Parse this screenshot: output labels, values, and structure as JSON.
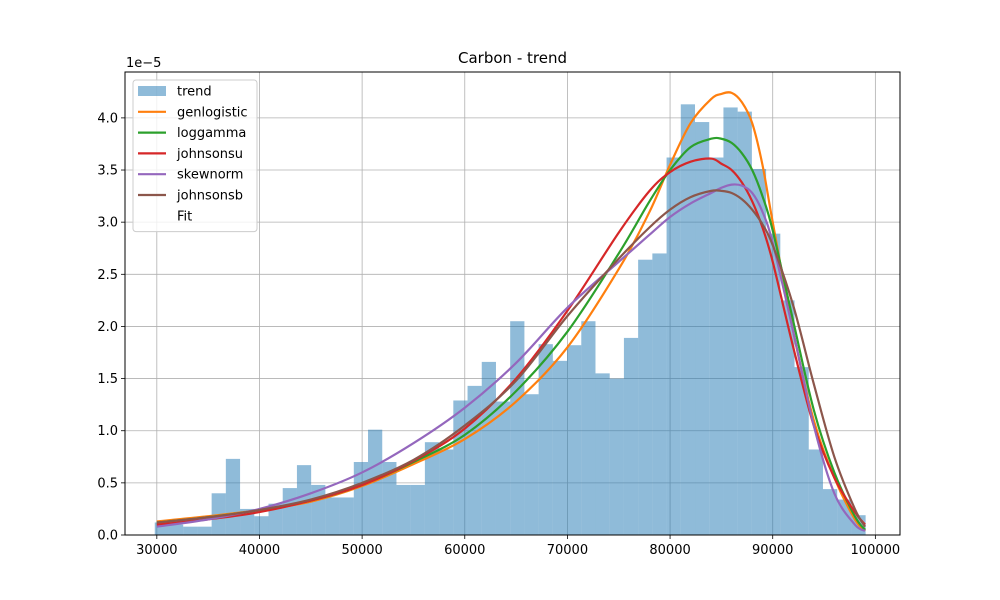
{
  "chart_data": {
    "type": "histogram+line",
    "title": "Carbon - trend",
    "xlabel": "",
    "ylabel": "",
    "y_scale_label": "1e−5",
    "xlim": [
      26900,
      102400
    ],
    "ylim": [
      0,
      4.44
    ],
    "grid": true,
    "legend_placement": "top-left",
    "x_ticks": [
      30000,
      40000,
      50000,
      60000,
      70000,
      80000,
      90000,
      100000
    ],
    "x_tick_labels": [
      "30000",
      "40000",
      "50000",
      "60000",
      "70000",
      "80000",
      "90000",
      "100000"
    ],
    "y_ticks": [
      0,
      0.5,
      1.0,
      1.5,
      2.0,
      2.5,
      3.0,
      3.5,
      4.0
    ],
    "y_tick_labels": [
      "0.0",
      "0.5",
      "1.0",
      "1.5",
      "2.0",
      "2.5",
      "3.0",
      "3.5",
      "4.0"
    ],
    "histogram": {
      "name": "trend",
      "color": "#1f77b4",
      "opacity": 0.5,
      "bin_start": 29800,
      "bin_width": 1385,
      "heights": [
        0.12,
        0.1,
        0.08,
        0.08,
        0.4,
        0.73,
        0.25,
        0.18,
        0.3,
        0.45,
        0.67,
        0.48,
        0.36,
        0.36,
        0.7,
        1.01,
        0.7,
        0.48,
        0.48,
        0.89,
        0.82,
        1.29,
        1.43,
        1.66,
        1.28,
        2.05,
        1.35,
        1.83,
        1.67,
        1.82,
        2.05,
        1.55,
        1.5,
        1.89,
        2.64,
        2.7,
        3.62,
        4.13,
        3.96,
        3.62,
        4.1,
        4.06,
        3.51,
        2.89,
        2.25,
        1.61,
        0.82,
        0.44,
        0.34,
        0.19
      ]
    },
    "series": [
      {
        "name": "genlogistic",
        "color": "#ff7f0e",
        "x": [
          30000,
          35000,
          40000,
          45000,
          50000,
          55000,
          60000,
          65000,
          70000,
          75000,
          78000,
          80000,
          82000,
          84000,
          85000,
          86000,
          87000,
          88000,
          89000,
          90000,
          92000,
          94000,
          96000,
          98000,
          99000
        ],
        "y": [
          0.13,
          0.18,
          0.24,
          0.32,
          0.47,
          0.68,
          0.92,
          1.28,
          1.8,
          2.55,
          3.1,
          3.55,
          3.95,
          4.18,
          4.23,
          4.24,
          4.15,
          3.95,
          3.55,
          3.0,
          1.95,
          1.1,
          0.55,
          0.15,
          0.04
        ]
      },
      {
        "name": "loggamma",
        "color": "#2ca02c",
        "x": [
          30000,
          35000,
          40000,
          45000,
          50000,
          55000,
          60000,
          65000,
          70000,
          75000,
          78000,
          80000,
          82000,
          84000,
          85000,
          86000,
          87000,
          88000,
          89000,
          90000,
          92000,
          94000,
          96000,
          98000,
          99000
        ],
        "y": [
          0.12,
          0.17,
          0.24,
          0.33,
          0.48,
          0.7,
          0.96,
          1.38,
          1.95,
          2.7,
          3.2,
          3.5,
          3.72,
          3.8,
          3.8,
          3.76,
          3.66,
          3.5,
          3.25,
          2.92,
          2.05,
          1.2,
          0.6,
          0.18,
          0.05
        ]
      },
      {
        "name": "johnsonsu",
        "color": "#d62728",
        "x": [
          30000,
          35000,
          40000,
          45000,
          50000,
          55000,
          60000,
          65000,
          70000,
          75000,
          78000,
          80000,
          82000,
          84000,
          85000,
          86000,
          87000,
          88000,
          89000,
          90000,
          92000,
          94000,
          96000,
          98000,
          99000
        ],
        "y": [
          0.1,
          0.15,
          0.22,
          0.33,
          0.48,
          0.71,
          1.02,
          1.5,
          2.15,
          2.9,
          3.3,
          3.48,
          3.58,
          3.61,
          3.56,
          3.5,
          3.38,
          3.2,
          2.95,
          2.62,
          1.8,
          1.05,
          0.55,
          0.22,
          0.1
        ]
      },
      {
        "name": "skewnorm",
        "color": "#9467bd",
        "x": [
          30000,
          35000,
          40000,
          45000,
          50000,
          55000,
          60000,
          65000,
          70000,
          75000,
          78000,
          80000,
          82000,
          84000,
          85000,
          86000,
          87000,
          88000,
          89000,
          90000,
          92000,
          94000,
          96000,
          98000,
          99000
        ],
        "y": [
          0.08,
          0.15,
          0.25,
          0.4,
          0.6,
          0.88,
          1.22,
          1.65,
          2.18,
          2.62,
          2.88,
          3.05,
          3.18,
          3.28,
          3.33,
          3.36,
          3.35,
          3.28,
          3.1,
          2.8,
          1.95,
          1.05,
          0.4,
          0.1,
          0.04
        ]
      },
      {
        "name": "johnsonsb",
        "color": "#8c564b",
        "x": [
          30000,
          35000,
          40000,
          45000,
          50000,
          55000,
          60000,
          65000,
          70000,
          75000,
          78000,
          80000,
          82000,
          84000,
          85000,
          86000,
          87000,
          88000,
          89000,
          90000,
          92000,
          94000,
          96000,
          98000,
          99000
        ],
        "y": [
          0.12,
          0.17,
          0.24,
          0.34,
          0.5,
          0.72,
          1.05,
          1.48,
          2.1,
          2.65,
          2.95,
          3.12,
          3.24,
          3.3,
          3.3,
          3.28,
          3.22,
          3.12,
          2.98,
          2.78,
          2.2,
          1.45,
          0.75,
          0.25,
          0.08
        ]
      }
    ],
    "legend": [
      "trend",
      "genlogistic",
      "loggamma",
      "johnsonsu",
      "skewnorm",
      "johnsonsb",
      "Fit"
    ]
  }
}
